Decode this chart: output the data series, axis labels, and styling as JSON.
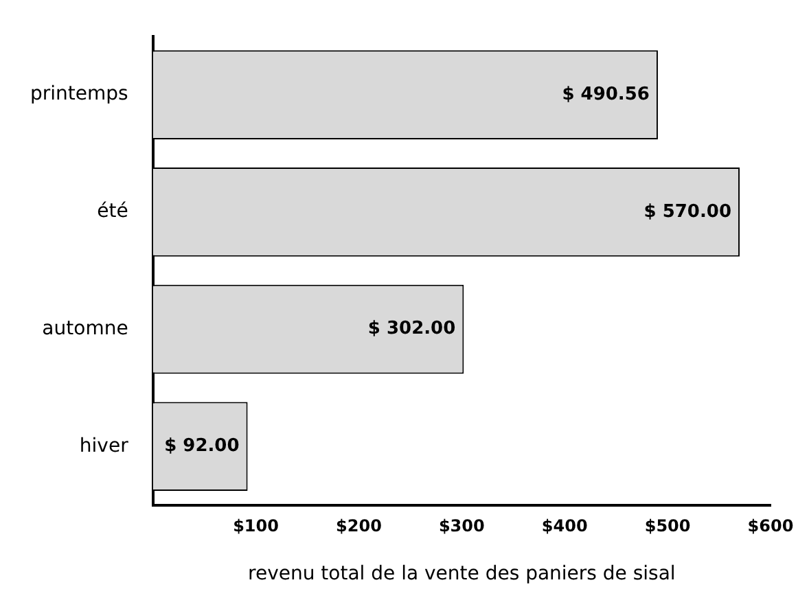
{
  "chart_data": {
    "type": "bar",
    "orientation": "horizontal",
    "xlabel": "revenu total de la vente des paniers de sisal",
    "categories": [
      "printemps",
      "été",
      "automne",
      "hiver"
    ],
    "values": [
      490.56,
      570,
      302,
      92
    ],
    "value_labels": [
      "$ 490.56",
      "$ 570.00",
      "$ 302.00",
      "$ 92.00"
    ],
    "color": "#d9d9d9",
    "xlim": [
      0,
      600
    ],
    "xticks": [
      {
        "value": 100,
        "label": "$100"
      },
      {
        "value": 200,
        "label": "$200"
      },
      {
        "value": 300,
        "label": "$300"
      },
      {
        "value": 400,
        "label": "$400"
      },
      {
        "value": 500,
        "label": "$500"
      },
      {
        "value": 600,
        "label": "$600"
      }
    ],
    "grid": false,
    "legend": false
  }
}
